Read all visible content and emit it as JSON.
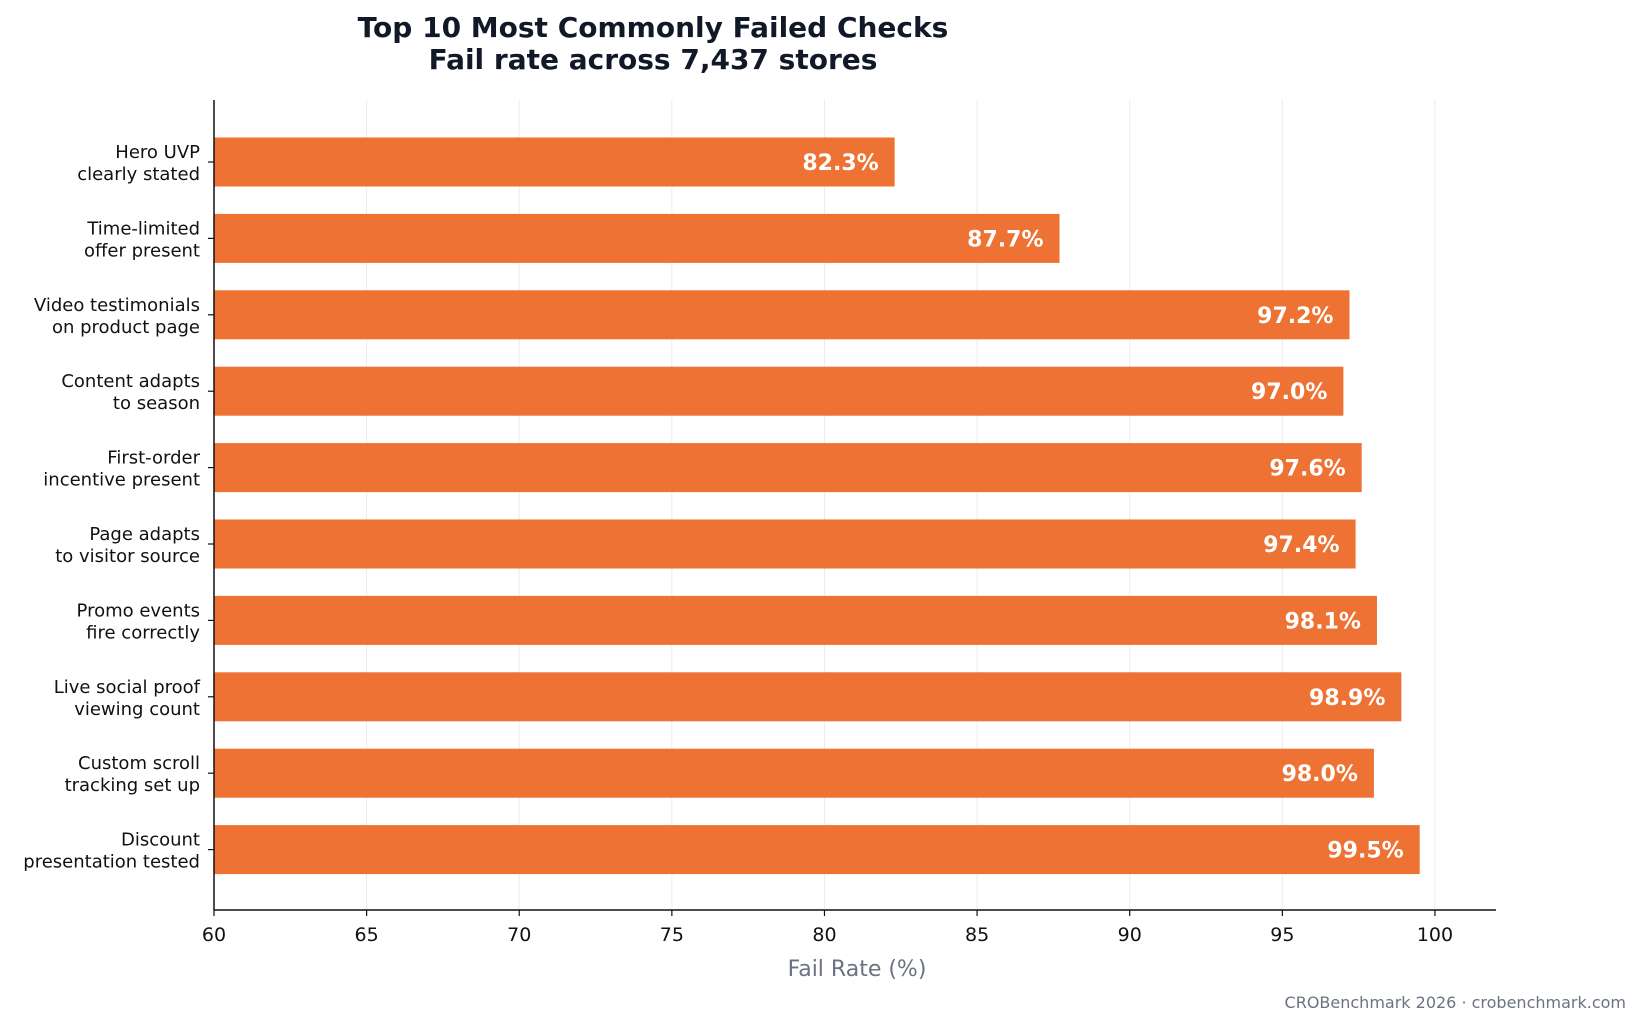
{
  "chart_data": {
    "type": "bar",
    "orientation": "horizontal",
    "title": "Top 10 Most Commonly Failed Checks",
    "subtitle": "Fail rate across 7,437 stores",
    "xlabel": "Fail Rate (%)",
    "ylabel": "",
    "xlim": [
      60,
      102
    ],
    "xticks": [
      "60",
      "65",
      "70",
      "75",
      "80",
      "85",
      "90",
      "95",
      "100"
    ],
    "grid": "vertical",
    "bar_color": "#ed7233",
    "categories": [
      [
        "Hero UVP",
        "clearly stated"
      ],
      [
        "Time-limited",
        "offer present"
      ],
      [
        "Video testimonials",
        "on product page"
      ],
      [
        "Content adapts",
        "to season"
      ],
      [
        "First-order",
        "incentive present"
      ],
      [
        "Page adapts",
        "to visitor source"
      ],
      [
        "Promo events",
        "fire correctly"
      ],
      [
        "Live social proof",
        "viewing count"
      ],
      [
        "Custom scroll",
        "tracking set up"
      ],
      [
        "Discount",
        "presentation tested"
      ]
    ],
    "values": [
      82.3,
      87.7,
      97.2,
      97.0,
      97.6,
      97.4,
      98.1,
      98.9,
      98.0,
      99.5
    ],
    "value_labels": [
      "82.3%",
      "87.7%",
      "97.2%",
      "97.0%",
      "97.6%",
      "97.4%",
      "98.1%",
      "98.9%",
      "98.0%",
      "99.5%"
    ]
  },
  "footer": "CROBenchmark 2026 · crobenchmark.com"
}
